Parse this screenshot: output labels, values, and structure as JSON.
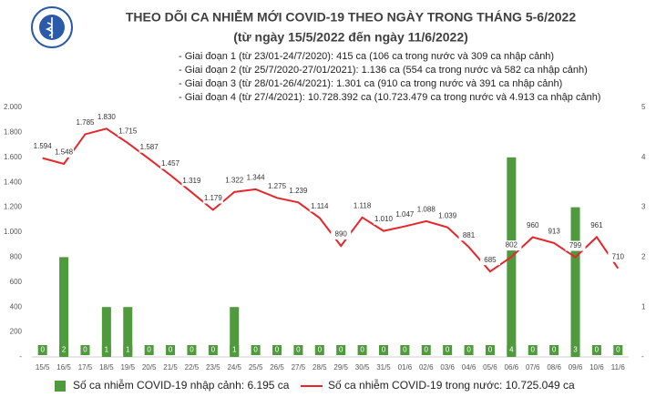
{
  "chart_data": {
    "type": "bar-line",
    "title": "THEO DÕI CA NHIỄM MỚI COVID-19 THEO NGÀY TRONG THÁNG 5-6/2022",
    "subtitle": "(từ ngày 15/5/2022 đến ngày 11/6/2022)",
    "annotations": [
      "- Giai đoạn 1 (từ 23/01-24/7/2020): 415 ca (106 ca trong nước và 309 ca nhập cảnh)",
      "- Giai đoạn 2 (từ 25/7/2020-27/01/2021): 1.136 ca (554 ca trong nước và 582 ca nhập cảnh)",
      "- Giai đoạn 3 (từ 28/01-26/4/2021): 1.301 ca (910 ca trong nước và 391 ca nhập cảnh)",
      "- Giai đoạn 4 (từ 27/4/2021): 10.728.392 ca (10.723.479 ca trong nước và 4.913 ca nhập cảnh)"
    ],
    "categories": [
      "15/5",
      "16/5",
      "17/5",
      "18/5",
      "19/5",
      "20/5",
      "21/5",
      "22/5",
      "23/5",
      "24/5",
      "25/5",
      "26/5",
      "27/5",
      "28/5",
      "29/5",
      "30/5",
      "31/5",
      "01/6",
      "02/6",
      "03/6",
      "04/6",
      "05/6",
      "06/6",
      "07/6",
      "08/6",
      "09/6",
      "10/6",
      "11/6"
    ],
    "series": [
      {
        "name": "Số ca nhiễm COVID-19 nhập cảnh: 6.195 ca",
        "type": "bar",
        "axis": "y2",
        "color": "#4f9a3c",
        "values": [
          0,
          2,
          0,
          1,
          1,
          0,
          0,
          0,
          0,
          1,
          0,
          0,
          0,
          0,
          0,
          0,
          0,
          0,
          0,
          0,
          0,
          0,
          4,
          0,
          0,
          3,
          0,
          0
        ]
      },
      {
        "name": "Số ca nhiễm COVID-19 trong nước: 10.725.049 ca",
        "type": "line",
        "axis": "y",
        "color": "#e5262a",
        "values": [
          1594,
          1548,
          1785,
          1830,
          1715,
          1587,
          1457,
          1319,
          1179,
          1322,
          1344,
          1275,
          1239,
          1114,
          890,
          1118,
          1010,
          1047,
          1088,
          1039,
          881,
          685,
          802,
          960,
          913,
          799,
          961,
          710
        ],
        "value_labels": [
          "1.594",
          "1.548",
          "1.785",
          "1.830",
          "1.715",
          "1.587",
          "1.457",
          "1.319",
          "1.179",
          "1.322",
          "1.344",
          "1.275",
          "1.239",
          "1.114",
          "890",
          "1.118",
          "1.010",
          "1.047",
          "1.088",
          "1.039",
          "881",
          "685",
          "802",
          "960",
          "913",
          "799",
          "961",
          "710"
        ]
      }
    ],
    "ylim": [
      0,
      2000
    ],
    "yticks": [
      {
        "value": 0,
        "label": "-"
      },
      200,
      400,
      600,
      800,
      {
        "value": 1000,
        "label": "1.000"
      },
      {
        "value": 1200,
        "label": "1.200"
      },
      {
        "value": 1400,
        "label": "1.400"
      },
      {
        "value": 1600,
        "label": "1.600"
      },
      {
        "value": 1800,
        "label": "1.800"
      },
      {
        "value": 2000,
        "label": "2.000"
      }
    ],
    "y2lim": [
      0,
      5
    ],
    "y2ticks": [
      {
        "value": 0,
        "label": "-"
      },
      1,
      2,
      3,
      4,
      5
    ]
  }
}
